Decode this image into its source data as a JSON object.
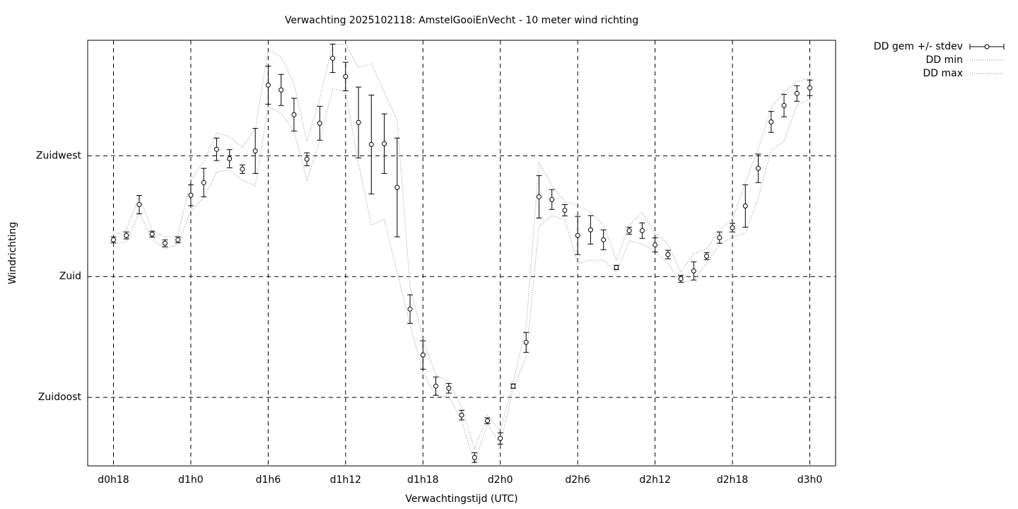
{
  "chart_data": {
    "type": "errorbar",
    "title": "Verwachting 2025102118: AmstelGooiEnVecht - 10 meter wind richting",
    "x_label": "Verwachtingstijd (UTC)",
    "y_label": "Windrichting",
    "x": [
      18,
      19,
      20,
      21,
      22,
      23,
      24,
      25,
      26,
      27,
      28,
      29,
      30,
      31,
      32,
      33,
      34,
      35,
      36,
      37,
      38,
      39,
      40,
      41,
      42,
      43,
      44,
      45,
      46,
      47,
      48,
      49,
      50,
      51,
      52,
      53,
      54,
      55,
      56,
      57,
      58,
      59,
      60,
      61,
      62,
      63,
      64,
      65,
      66,
      67,
      68,
      69,
      70,
      71,
      72
    ],
    "series": [
      {
        "name": "DD gem +/- stdev",
        "color": "#000000",
        "values": [
          193.7,
          195.3,
          206.8,
          195.8,
          192.4,
          193.7,
          210.3,
          215.0,
          227.4,
          223.9,
          220.0,
          226.8,
          251.3,
          249.5,
          240.3,
          223.7,
          237.1,
          261.3,
          254.5,
          237.4,
          229.2,
          229.5,
          213.2,
          167.9,
          150.8,
          139.2,
          138.4,
          128.4,
          112.6,
          126.3,
          119.7,
          139.2,
          155.5,
          209.7,
          208.7,
          204.7,
          195.3,
          197.4,
          193.7,
          183.4,
          197.1,
          197.1,
          191.8,
          188.2,
          179.2,
          182.1,
          187.6,
          194.5,
          198.2,
          206.3,
          220.3,
          237.6,
          243.7,
          248.2,
          250.3
        ],
        "errors": [
          1.1,
          1.3,
          3.4,
          1.1,
          1.3,
          1.1,
          3.9,
          5.3,
          4.2,
          3.4,
          1.6,
          8.4,
          7.1,
          5.8,
          6.1,
          2.4,
          6.3,
          5.3,
          5.3,
          13.2,
          18.4,
          11.1,
          18.4,
          5.3,
          5.3,
          3.4,
          1.8,
          1.8,
          1.8,
          1.1,
          2.1,
          0.8,
          3.7,
          7.9,
          3.7,
          2.1,
          7.1,
          5.3,
          3.7,
          0.8,
          1.3,
          2.9,
          2.6,
          1.6,
          1.3,
          3.4,
          1.3,
          2.1,
          1.6,
          7.9,
          5.3,
          3.9,
          4.2,
          2.9,
          2.9
        ]
      },
      {
        "name": "DD min",
        "color": "#a0a0a0",
        "values": [
          192.1,
          192.9,
          203.9,
          193.9,
          190.3,
          192.1,
          204.5,
          209.2,
          218.9,
          219.7,
          215.8,
          213.9,
          243.4,
          240.8,
          234.2,
          215.8,
          230.8,
          250.0,
          248.7,
          222.4,
          199.2,
          201.3,
          181.6,
          161.8,
          144.7,
          135.5,
          135.5,
          126.3,
          110.5,
          125.0,
          117.6,
          138.2,
          150.0,
          198.7,
          202.6,
          201.3,
          185.0,
          186.1,
          186.1,
          181.6,
          193.4,
          192.1,
          189.5,
          185.0,
          177.6,
          178.7,
          185.0,
          192.1,
          194.7,
          196.1,
          209.2,
          227.1,
          230.3,
          243.9,
          246.1
        ]
      },
      {
        "name": "DD max",
        "color": "#a0a0a0",
        "values": [
          195.3,
          197.4,
          210.0,
          197.1,
          194.7,
          195.3,
          215.8,
          222.9,
          233.4,
          232.1,
          228.2,
          235.0,
          264.5,
          261.8,
          251.8,
          230.3,
          246.1,
          266.6,
          266.6,
          257.9,
          259.2,
          248.7,
          238.2,
          176.3,
          156.6,
          143.4,
          140.8,
          131.6,
          115.8,
          128.2,
          122.4,
          140.8,
          161.3,
          222.4,
          213.9,
          207.9,
          206.6,
          203.9,
          199.2,
          186.1,
          199.2,
          203.9,
          196.1,
          192.1,
          181.6,
          188.7,
          190.3,
          197.4,
          201.3,
          215.0,
          227.6,
          242.9,
          248.7,
          252.6,
          253.9
        ]
      }
    ],
    "xlim": [
      16,
      74
    ],
    "ylim": [
      109.5,
      268
    ],
    "xticks": [
      {
        "value": 18,
        "label": "d0h18"
      },
      {
        "value": 24,
        "label": "d1h0"
      },
      {
        "value": 30,
        "label": "d1h6"
      },
      {
        "value": 36,
        "label": "d1h12"
      },
      {
        "value": 42,
        "label": "d1h18"
      },
      {
        "value": 48,
        "label": "d2h0"
      },
      {
        "value": 54,
        "label": "d2h6"
      },
      {
        "value": 60,
        "label": "d2h12"
      },
      {
        "value": 66,
        "label": "d2h18"
      },
      {
        "value": 72,
        "label": "d3h0"
      }
    ],
    "yticks": [
      {
        "value": 135,
        "label": "Zuidoost"
      },
      {
        "value": 180,
        "label": "Zuid"
      },
      {
        "value": 225,
        "label": "Zuidwest"
      }
    ],
    "grid": true,
    "legend": "outside-top-right"
  }
}
